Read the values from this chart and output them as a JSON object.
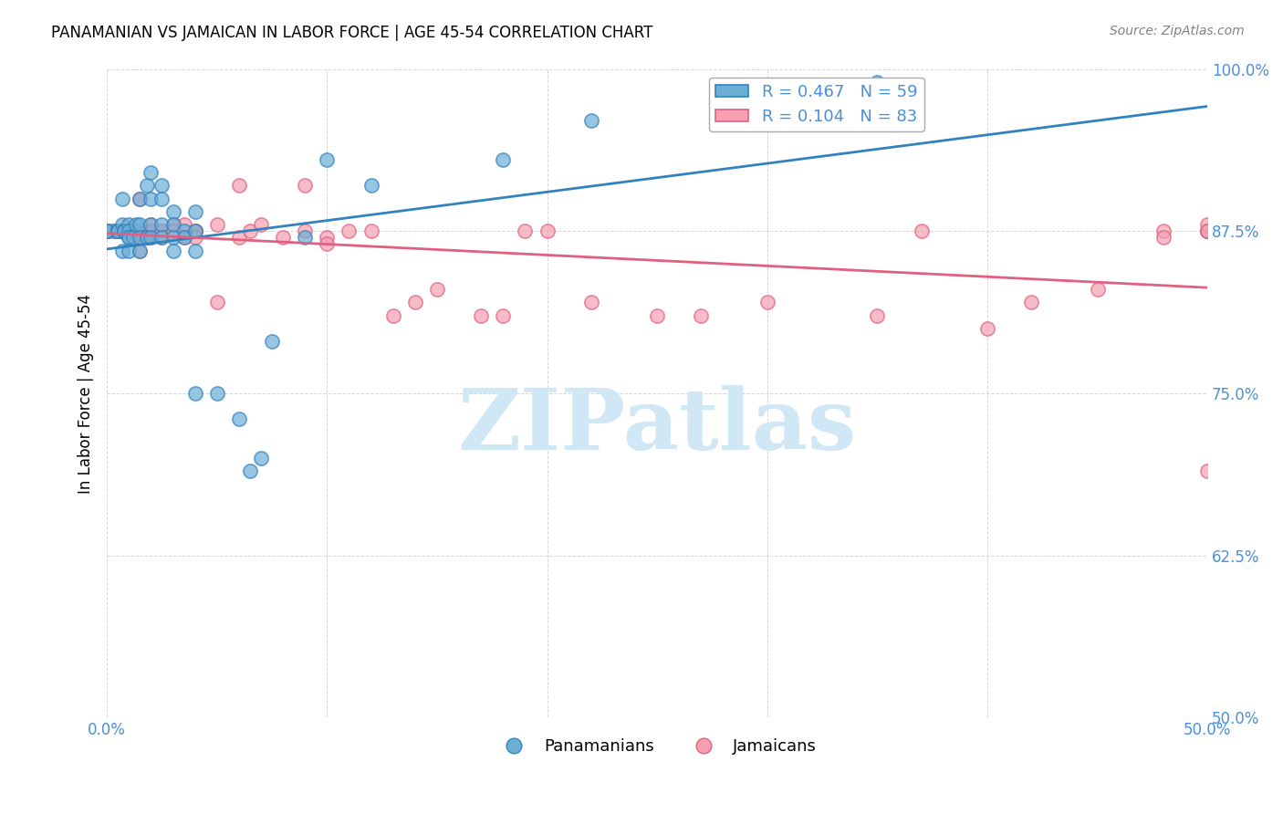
{
  "title": "PANAMANIAN VS JAMAICAN IN LABOR FORCE | AGE 45-54 CORRELATION CHART",
  "source_text": "Source: ZipAtlas.com",
  "xlabel": "",
  "ylabel": "In Labor Force | Age 45-54",
  "xlim": [
    0.0,
    0.5
  ],
  "ylim": [
    0.5,
    1.0
  ],
  "xticks": [
    0.0,
    0.1,
    0.2,
    0.3,
    0.4,
    0.5
  ],
  "xtick_labels": [
    "0.0%",
    "",
    "",
    "",
    "",
    "50.0%"
  ],
  "yticks": [
    0.5,
    0.625,
    0.75,
    0.875,
    1.0
  ],
  "ytick_labels": [
    "50.0%",
    "62.5%",
    "75.0%",
    "87.5%",
    "100.0%"
  ],
  "legend1_label": "R = 0.467   N = 59",
  "legend2_label": "R = 0.104   N = 83",
  "legend_bottom_label1": "Panamanians",
  "legend_bottom_label2": "Jamaicans",
  "blue_color": "#6baed6",
  "pink_color": "#f4a0b0",
  "blue_line_color": "#3182bd",
  "pink_line_color": "#e06080",
  "label_color": "#4a90d9",
  "watermark_color": "#d0e8f5",
  "watermark_text": "ZIPatlas",
  "blue_dots_x": [
    0.0,
    0.0,
    0.0,
    0.0,
    0.005,
    0.005,
    0.005,
    0.005,
    0.005,
    0.005,
    0.007,
    0.007,
    0.007,
    0.008,
    0.008,
    0.008,
    0.008,
    0.01,
    0.01,
    0.01,
    0.01,
    0.01,
    0.012,
    0.013,
    0.015,
    0.015,
    0.015,
    0.015,
    0.018,
    0.018,
    0.02,
    0.02,
    0.02,
    0.02,
    0.025,
    0.025,
    0.025,
    0.025,
    0.03,
    0.03,
    0.03,
    0.03,
    0.035,
    0.035,
    0.04,
    0.04,
    0.04,
    0.04,
    0.05,
    0.06,
    0.065,
    0.07,
    0.075,
    0.09,
    0.1,
    0.12,
    0.18,
    0.22,
    0.35
  ],
  "blue_dots_y": [
    0.875,
    0.875,
    0.875,
    0.875,
    0.875,
    0.875,
    0.875,
    0.875,
    0.875,
    0.875,
    0.9,
    0.88,
    0.86,
    0.875,
    0.875,
    0.875,
    0.875,
    0.88,
    0.875,
    0.87,
    0.87,
    0.86,
    0.87,
    0.88,
    0.9,
    0.88,
    0.87,
    0.86,
    0.91,
    0.87,
    0.92,
    0.9,
    0.88,
    0.87,
    0.91,
    0.9,
    0.88,
    0.87,
    0.89,
    0.88,
    0.87,
    0.86,
    0.875,
    0.87,
    0.89,
    0.875,
    0.86,
    0.75,
    0.75,
    0.73,
    0.69,
    0.7,
    0.79,
    0.87,
    0.93,
    0.91,
    0.93,
    0.96,
    0.99
  ],
  "pink_dots_x": [
    0.0,
    0.0,
    0.0,
    0.0,
    0.003,
    0.003,
    0.003,
    0.005,
    0.005,
    0.005,
    0.005,
    0.005,
    0.005,
    0.007,
    0.007,
    0.007,
    0.007,
    0.008,
    0.008,
    0.01,
    0.01,
    0.01,
    0.01,
    0.012,
    0.012,
    0.013,
    0.015,
    0.015,
    0.015,
    0.015,
    0.018,
    0.018,
    0.018,
    0.02,
    0.02,
    0.02,
    0.025,
    0.025,
    0.025,
    0.03,
    0.03,
    0.035,
    0.035,
    0.04,
    0.04,
    0.04,
    0.05,
    0.05,
    0.06,
    0.06,
    0.065,
    0.07,
    0.08,
    0.09,
    0.09,
    0.1,
    0.1,
    0.11,
    0.12,
    0.13,
    0.14,
    0.15,
    0.17,
    0.18,
    0.19,
    0.2,
    0.22,
    0.25,
    0.27,
    0.3,
    0.35,
    0.37,
    0.4,
    0.42,
    0.45,
    0.48,
    0.48,
    0.5,
    0.5,
    0.5,
    0.5,
    0.5,
    0.5
  ],
  "pink_dots_y": [
    0.875,
    0.875,
    0.875,
    0.875,
    0.875,
    0.875,
    0.875,
    0.875,
    0.875,
    0.875,
    0.875,
    0.875,
    0.875,
    0.875,
    0.875,
    0.875,
    0.875,
    0.875,
    0.875,
    0.875,
    0.875,
    0.875,
    0.875,
    0.875,
    0.875,
    0.875,
    0.9,
    0.875,
    0.87,
    0.86,
    0.875,
    0.875,
    0.87,
    0.88,
    0.875,
    0.87,
    0.875,
    0.875,
    0.87,
    0.88,
    0.875,
    0.88,
    0.87,
    0.875,
    0.875,
    0.87,
    0.88,
    0.82,
    0.91,
    0.87,
    0.875,
    0.88,
    0.87,
    0.91,
    0.875,
    0.87,
    0.865,
    0.875,
    0.875,
    0.81,
    0.82,
    0.83,
    0.81,
    0.81,
    0.875,
    0.875,
    0.82,
    0.81,
    0.81,
    0.82,
    0.81,
    0.875,
    0.8,
    0.82,
    0.83,
    0.875,
    0.87,
    0.875,
    0.875,
    0.875,
    0.88,
    0.875,
    0.69
  ]
}
